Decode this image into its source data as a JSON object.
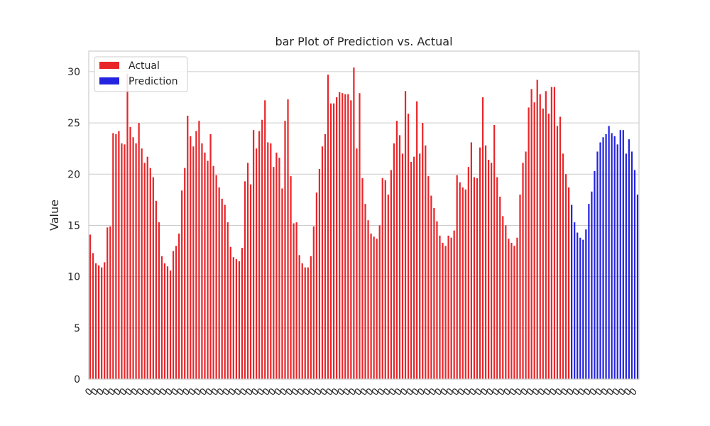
{
  "chart_data": {
    "type": "bar",
    "title": "bar Plot of Prediction vs. Actual",
    "xlabel": "",
    "ylabel": "Value",
    "ylim": [
      0,
      32
    ],
    "yticks": [
      0,
      5,
      10,
      15,
      20,
      25,
      30
    ],
    "grid": "horizontal",
    "legend_position": "top-left",
    "x_tick_label": "0",
    "series": [
      {
        "name": "Actual",
        "color": "#e8262a",
        "values": [
          14.1,
          12.3,
          11.3,
          11.1,
          10.9,
          11.4,
          14.8,
          14.9,
          24.0,
          23.9,
          24.2,
          23.0,
          22.9,
          29.8,
          24.6,
          23.6,
          23.0,
          25.0,
          22.5,
          21.1,
          21.7,
          20.6,
          19.7,
          17.4,
          15.3,
          12.0,
          11.3,
          11.0,
          10.6,
          12.5,
          13.0,
          14.2,
          18.4,
          20.6,
          25.7,
          23.7,
          22.7,
          24.2,
          25.2,
          23.0,
          22.1,
          21.3,
          23.9,
          20.8,
          19.9,
          18.7,
          17.6,
          17.0,
          15.3,
          12.9,
          11.9,
          11.7,
          11.5,
          12.8,
          19.3,
          21.1,
          19.0,
          24.3,
          22.5,
          24.2,
          25.3,
          27.2,
          23.1,
          23.0,
          20.7,
          22.1,
          21.6,
          18.6,
          25.2,
          27.3,
          19.8,
          15.2,
          15.3,
          12.1,
          11.3,
          10.9,
          10.9,
          12.0,
          14.9,
          18.2,
          20.5,
          22.7,
          23.9,
          29.7,
          26.9,
          26.9,
          27.5,
          28.0,
          27.9,
          27.8,
          27.8,
          27.2,
          30.4,
          22.5,
          27.9,
          19.6,
          17.1,
          15.5,
          14.2,
          13.9,
          13.7,
          15.0,
          19.6,
          19.4,
          18.0,
          20.4,
          23.0,
          25.2,
          23.8,
          22.0,
          28.1,
          25.9,
          21.2,
          21.7,
          27.1,
          22.0,
          25.0,
          22.8,
          19.8,
          17.9,
          16.7,
          15.4,
          14.0,
          13.3,
          13.0,
          14.0,
          13.8,
          14.5,
          19.9,
          19.2,
          18.7,
          18.5,
          20.7,
          23.1,
          19.7,
          19.6,
          22.6,
          27.5,
          22.8,
          21.4,
          21.1,
          24.8,
          19.7,
          17.8,
          15.9,
          15.0,
          13.7,
          13.3,
          13.0,
          13.8,
          18.0,
          21.1,
          22.2,
          26.5,
          28.3,
          27.0,
          29.2,
          27.8,
          26.4,
          28.1,
          25.9,
          28.5,
          28.5,
          24.7,
          25.6,
          22.0,
          20.0,
          18.7
        ]
      },
      {
        "name": "Prediction",
        "color": "#2323e0",
        "values": [
          17.0,
          15.3,
          14.3,
          13.8,
          13.6,
          14.6,
          17.1,
          18.3,
          20.3,
          22.2,
          23.1,
          23.6,
          23.9,
          24.7,
          24.0,
          23.7,
          22.9,
          24.3,
          24.3,
          22.0,
          23.4,
          22.2,
          20.4,
          18.0
        ]
      }
    ]
  }
}
